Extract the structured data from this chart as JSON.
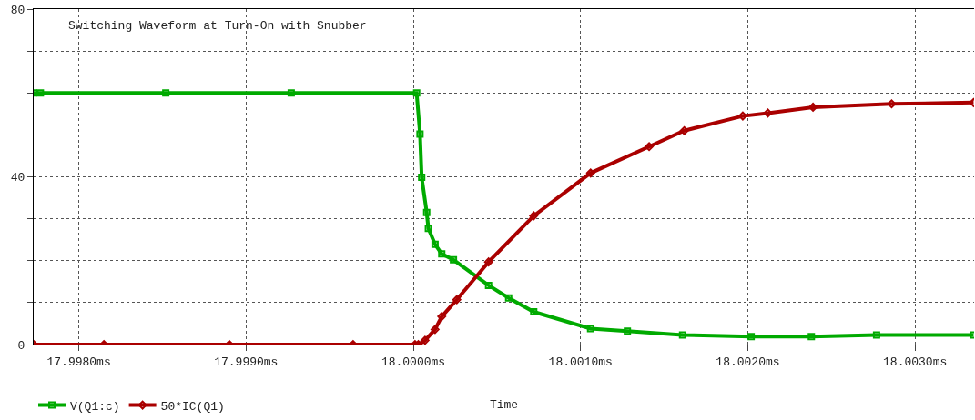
{
  "chart_data": {
    "type": "line",
    "title": "Switching Waveform at Turn-On with Snubber",
    "xlabel": "Time",
    "xlim": [
      17.99773,
      18.003353
    ],
    "xticks": [
      {
        "value": 17.998,
        "label": "17.9980ms"
      },
      {
        "value": 17.999,
        "label": "17.9990ms"
      },
      {
        "value": 18.0,
        "label": "18.0000ms"
      },
      {
        "value": 18.001,
        "label": "18.0010ms"
      },
      {
        "value": 18.002,
        "label": "18.0020ms"
      },
      {
        "value": 18.003,
        "label": "18.0030ms"
      }
    ],
    "ylim": [
      0,
      80
    ],
    "yticks": [
      0,
      {
        "value": 10,
        "label": null
      },
      {
        "value": 20,
        "label": null
      },
      {
        "value": 30,
        "label": null
      },
      40,
      {
        "value": 50,
        "label": null
      },
      {
        "value": 60,
        "label": null
      },
      {
        "value": 70,
        "label": null
      },
      80
    ],
    "grid": true,
    "legend": "bottom left",
    "line_style": "solid",
    "series": [
      {
        "name": "V(Q1:c)",
        "color": "#00aa00",
        "marker": "square",
        "x": [
          17.99773,
          17.99777,
          17.99852,
          17.99927,
          18.00002,
          18.00004,
          18.00005,
          18.00008,
          18.00009,
          18.00013,
          18.00017,
          18.00024,
          18.00045,
          18.00057,
          18.00072,
          18.00106,
          18.00128,
          18.00161,
          18.00202,
          18.00238,
          18.00277,
          18.00335
        ],
        "values": [
          60,
          60,
          60,
          60,
          60,
          50.2,
          39.9,
          31.5,
          27.7,
          23.9,
          21.6,
          20.2,
          14.1,
          11.1,
          7.8,
          3.8,
          3.2,
          2.3,
          1.9,
          1.9,
          2.3,
          2.3
        ]
      },
      {
        "name": "50*IC(Q1)",
        "color": "#aa0000",
        "marker": "diamond",
        "x": [
          17.99773,
          17.99815,
          17.9989,
          17.99964,
          18.00001,
          18.00003,
          18.00007,
          18.00013,
          18.00017,
          18.00026,
          18.00045,
          18.00072,
          18.00106,
          18.00141,
          18.00162,
          18.00197,
          18.00212,
          18.00239,
          18.00286,
          18.00335
        ],
        "values": [
          0,
          0,
          0,
          0,
          0,
          0,
          1.0,
          3.6,
          6.7,
          10.7,
          19.7,
          30.7,
          40.9,
          47.2,
          51.0,
          54.5,
          55.2,
          56.6,
          57.4,
          57.7
        ]
      }
    ]
  }
}
